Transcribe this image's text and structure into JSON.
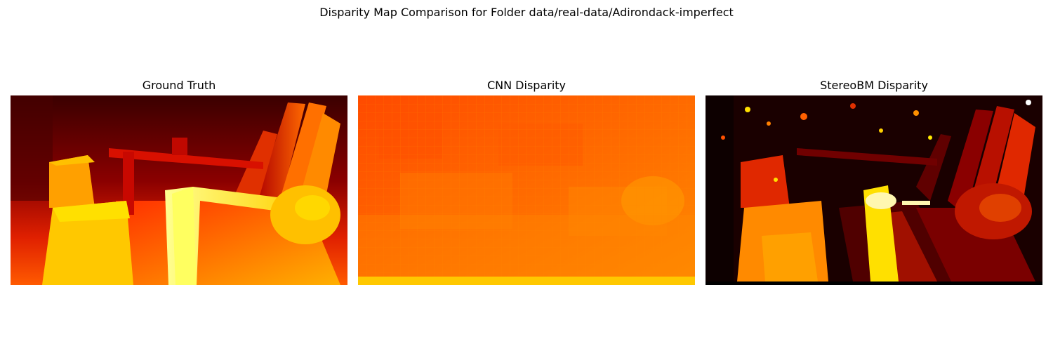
{
  "figure": {
    "title": "Disparity Map Comparison for Folder data/real-data/Adirondack-imperfect"
  },
  "panels": [
    {
      "title": "Ground Truth",
      "colormap": "hot"
    },
    {
      "title": "CNN Disparity",
      "colormap": "hot"
    },
    {
      "title": "StereoBM Disparity",
      "colormap": "hot"
    }
  ],
  "colors": {
    "dark_red": "#3a0000",
    "red": "#d01000",
    "orange": "#ff6000",
    "yellow": "#ffe000",
    "white_yellow": "#ffffa0"
  }
}
